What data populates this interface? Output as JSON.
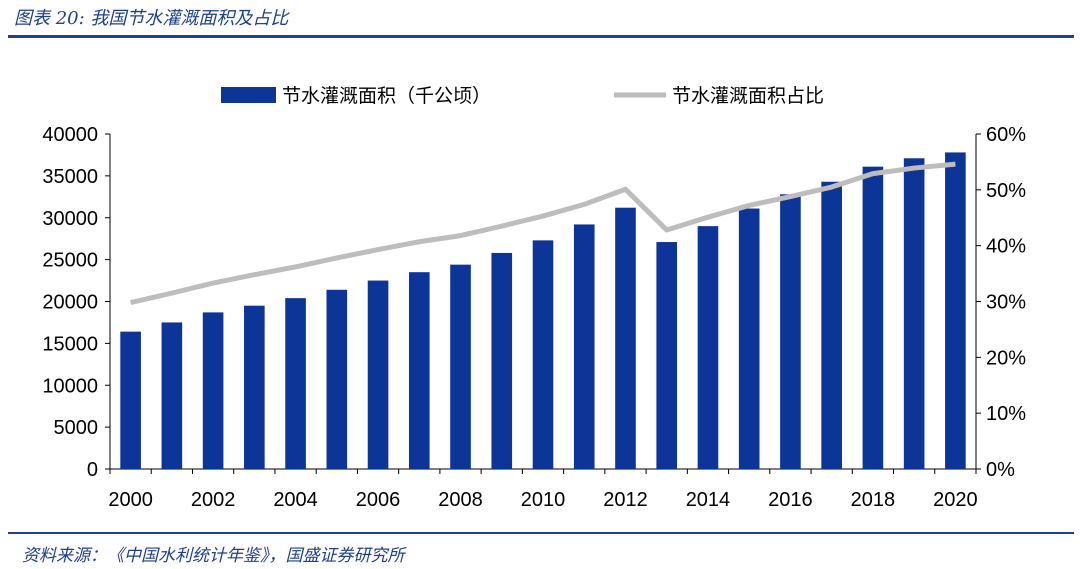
{
  "figure": {
    "title": "图表 20:  我国节水灌溉面积及占比",
    "source": "资料来源：《中国水利统计年鉴》，国盛证券研究所"
  },
  "colors": {
    "bar": "#0d3598",
    "line": "#bdbdbd",
    "accent": "#1f3f8f"
  },
  "chart_data": {
    "type": "bar",
    "x": [
      2000,
      2001,
      2002,
      2003,
      2004,
      2005,
      2006,
      2007,
      2008,
      2009,
      2010,
      2011,
      2012,
      2013,
      2014,
      2015,
      2016,
      2017,
      2018,
      2019,
      2020
    ],
    "x_tick_labels": [
      "2000",
      "2002",
      "2004",
      "2006",
      "2008",
      "2010",
      "2012",
      "2014",
      "2016",
      "2018",
      "2020"
    ],
    "series": [
      {
        "name": "节水灌溉面积（千公顷）",
        "type": "bar",
        "axis": "left",
        "values": [
          16400,
          17500,
          18700,
          19500,
          20400,
          21400,
          22500,
          23500,
          24400,
          25800,
          27300,
          29200,
          31200,
          27100,
          29000,
          31100,
          32800,
          34300,
          36100,
          37100,
          37800
        ]
      },
      {
        "name": "节水灌溉面积占比",
        "type": "line",
        "axis": "right",
        "values": [
          0.298,
          0.315,
          0.333,
          0.348,
          0.362,
          0.378,
          0.393,
          0.407,
          0.418,
          0.435,
          0.453,
          0.474,
          0.501,
          0.428,
          0.451,
          0.472,
          0.488,
          0.505,
          0.529,
          0.539,
          0.546
        ]
      }
    ],
    "y_left": {
      "lim": [
        0,
        40000
      ],
      "ticks": [
        "0",
        "5000",
        "10000",
        "15000",
        "20000",
        "25000",
        "30000",
        "35000",
        "40000"
      ]
    },
    "y_right": {
      "lim": [
        0,
        0.6
      ],
      "ticks": [
        "0%",
        "10%",
        "20%",
        "30%",
        "40%",
        "50%",
        "60%"
      ]
    },
    "legend": "top",
    "grid": false
  }
}
